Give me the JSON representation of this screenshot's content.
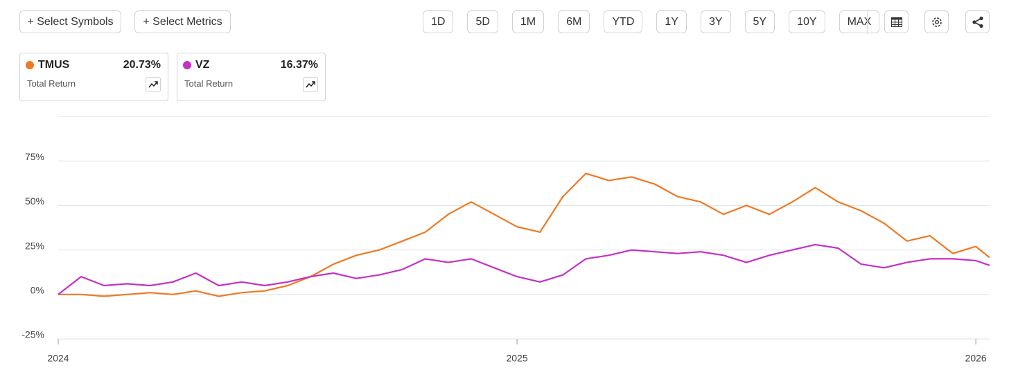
{
  "toolbar": {
    "select_symbols": "+ Select Symbols",
    "select_metrics": "+ Select Metrics",
    "ranges": [
      "1D",
      "5D",
      "1M",
      "6M",
      "YTD",
      "1Y",
      "3Y",
      "5Y",
      "10Y",
      "MAX"
    ]
  },
  "cards": [
    {
      "return": "20.73%",
      "metric": "Total Return"
    },
    {
      "return": "16.37%",
      "metric": "Total Return"
    }
  ],
  "chart_data": {
    "type": "line",
    "x": [
      2024.0,
      2024.05,
      2024.1,
      2024.15,
      2024.2,
      2024.25,
      2024.3,
      2024.35,
      2024.4,
      2024.45,
      2024.5,
      2024.55,
      2024.6,
      2024.65,
      2024.7,
      2024.75,
      2024.8,
      2024.85,
      2024.9,
      2024.95,
      2025.0,
      2025.05,
      2025.1,
      2025.15,
      2025.2,
      2025.25,
      2025.3,
      2025.35,
      2025.4,
      2025.45,
      2025.5,
      2025.55,
      2025.6,
      2025.65,
      2025.7,
      2025.75,
      2025.8,
      2025.85,
      2025.9,
      2025.95,
      2026.0,
      2026.03
    ],
    "series": [
      {
        "name": "TMUS",
        "color": "#f07820",
        "values": [
          0,
          0,
          -1,
          0,
          1,
          0,
          2,
          -1,
          1,
          2,
          5,
          10,
          17,
          22,
          25,
          30,
          35,
          45,
          52,
          45,
          38,
          35,
          55,
          68,
          64,
          66,
          62,
          55,
          52,
          45,
          50,
          45,
          52,
          60,
          52,
          47,
          40,
          30,
          33,
          23,
          27,
          20.73
        ]
      },
      {
        "name": "VZ",
        "color": "#c530c5",
        "values": [
          0,
          10,
          5,
          6,
          5,
          7,
          12,
          5,
          7,
          5,
          7,
          10,
          12,
          9,
          11,
          14,
          20,
          18,
          20,
          15,
          10,
          7,
          11,
          20,
          22,
          25,
          24,
          23,
          24,
          22,
          18,
          22,
          25,
          28,
          26,
          17,
          15,
          18,
          20,
          20,
          19,
          16.37
        ]
      }
    ],
    "xlim": [
      2024,
      2026.03
    ],
    "xticks": [
      2024,
      2025,
      2026
    ],
    "ylim": [
      -25,
      100
    ],
    "yticks": [
      {
        "value": -25,
        "label": "-25%"
      },
      {
        "value": 0,
        "label": "0%"
      },
      {
        "value": 25,
        "label": "25%"
      },
      {
        "value": 50,
        "label": "50%"
      },
      {
        "value": 75,
        "label": "75%"
      }
    ],
    "grid": true
  }
}
